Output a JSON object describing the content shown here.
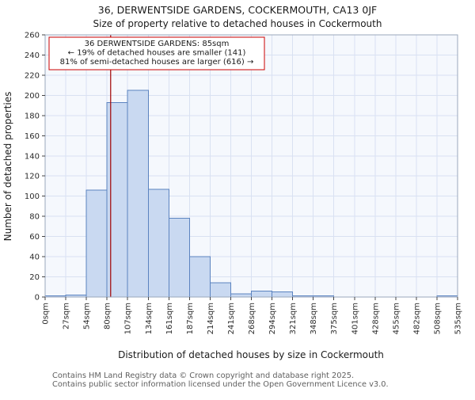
{
  "footer": {
    "line1": "Contains HM Land Registry data © Crown copyright and database right 2025.",
    "line2": "Contains public sector information licensed under the Open Government Licence v3.0."
  },
  "chart_data": {
    "type": "bar",
    "title": "36, DERWENTSIDE GARDENS, COCKERMOUTH, CA13 0JF",
    "subtitle": "Size of property relative to detached houses in Cockermouth",
    "xlabel": "Distribution of detached houses by size in Cockermouth",
    "ylabel": "Number of detached properties",
    "ylim": [
      0,
      260
    ],
    "ytick_step": 20,
    "grid": true,
    "bin_labels": [
      "0sqm",
      "27sqm",
      "54sqm",
      "80sqm",
      "107sqm",
      "134sqm",
      "161sqm",
      "187sqm",
      "214sqm",
      "241sqm",
      "268sqm",
      "294sqm",
      "321sqm",
      "348sqm",
      "375sqm",
      "401sqm",
      "428sqm",
      "455sqm",
      "482sqm",
      "508sqm",
      "535sqm"
    ],
    "values": [
      1,
      2,
      106,
      193,
      205,
      107,
      78,
      40,
      14,
      3,
      6,
      5,
      1,
      1,
      0,
      0,
      0,
      0,
      0,
      1
    ],
    "marker": {
      "value_sqm": 85,
      "axis_max_sqm": 535
    },
    "annotation": {
      "line1": "36 DERWENTSIDE GARDENS: 85sqm",
      "line2": "← 19% of detached houses are smaller (141)",
      "line3": "81% of semi-detached houses are larger (616) →",
      "border_color": "#cc0000"
    },
    "colors": {
      "bar_fill": "#c9d9f1",
      "bar_stroke": "#5b83c0",
      "grid": "#d9e1f2",
      "marker": "#a00000",
      "plot_bg": "#f5f8fd"
    }
  }
}
